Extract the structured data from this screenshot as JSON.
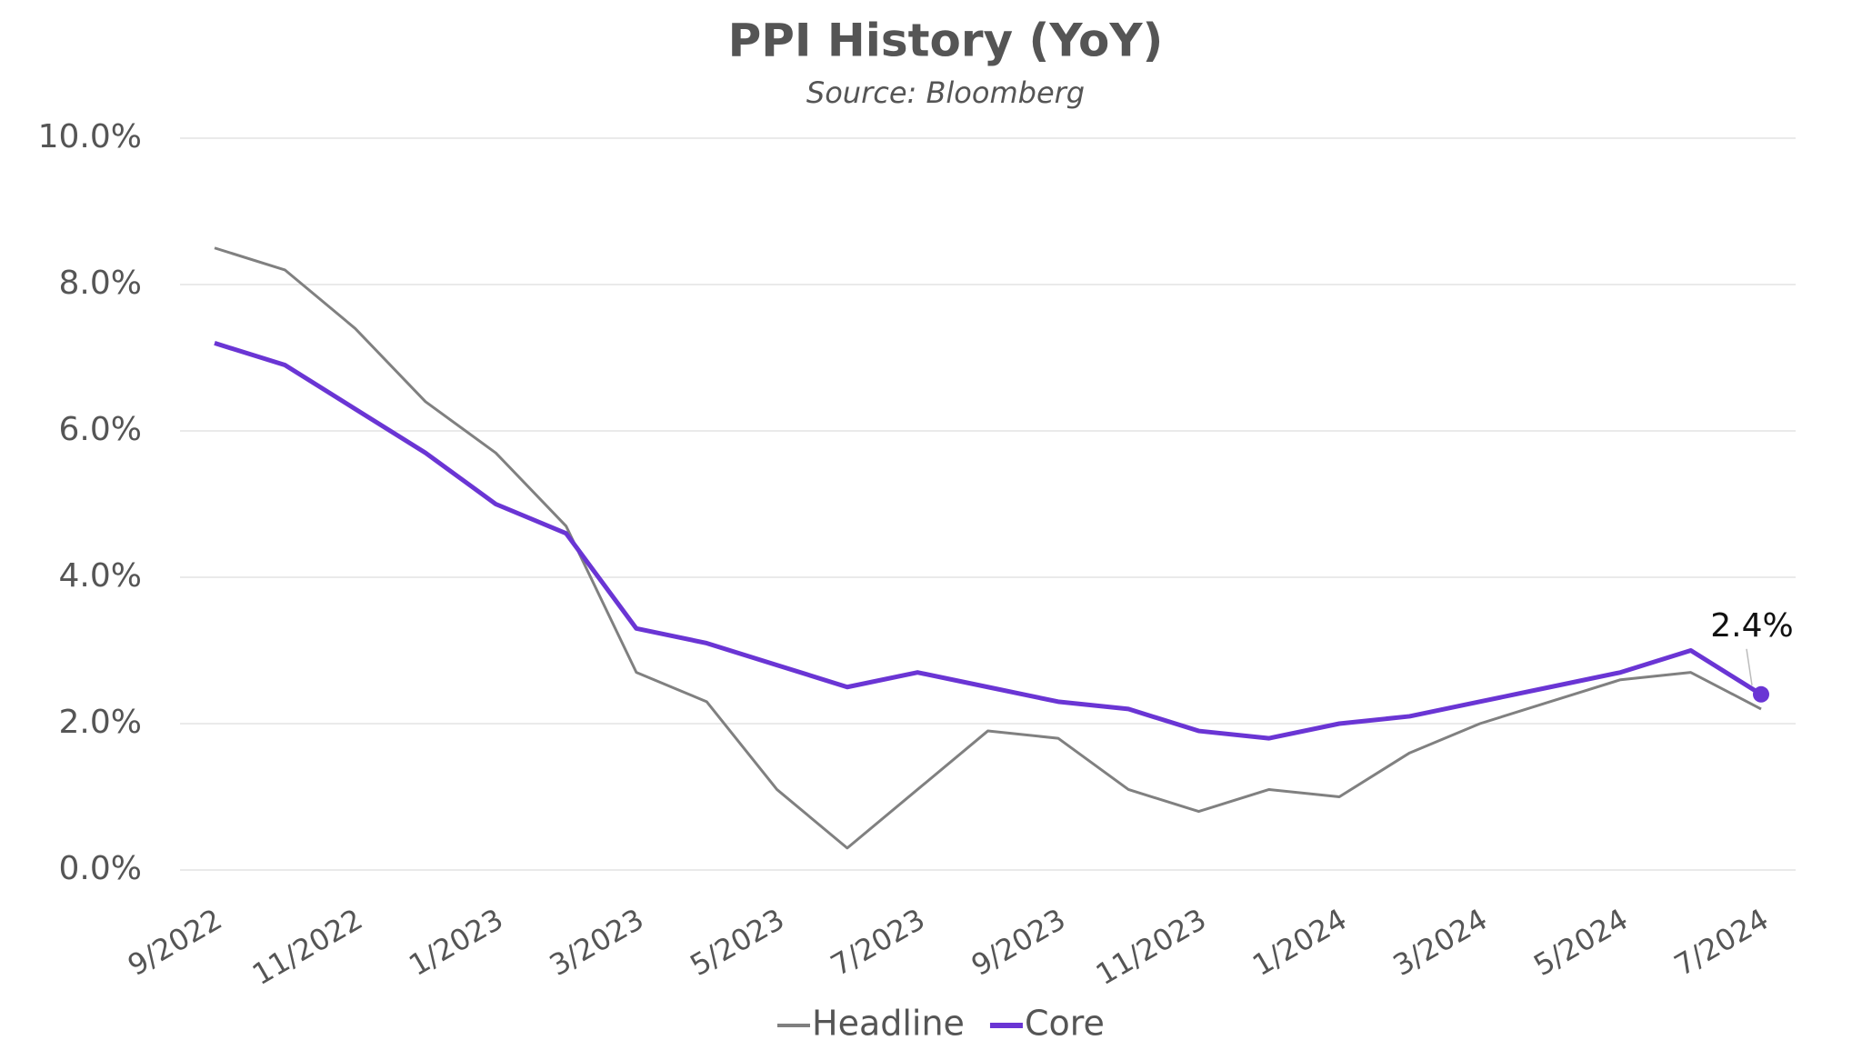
{
  "chart_data": {
    "type": "line",
    "title": "PPI History (YoY)",
    "subtitle": "Source: Bloomberg",
    "categories": [
      "9/2022",
      null,
      "11/2022",
      null,
      "1/2023",
      null,
      "3/2023",
      null,
      "5/2023",
      null,
      "7/2023",
      null,
      "9/2023",
      null,
      "11/2023",
      null,
      "1/2024",
      null,
      "3/2024",
      null,
      "5/2024",
      null,
      "7/2024"
    ],
    "series": [
      {
        "name": "Headline",
        "color": "#808080",
        "values": [
          8.5,
          8.2,
          7.4,
          6.4,
          5.7,
          4.7,
          2.7,
          2.3,
          1.1,
          0.3,
          1.1,
          1.9,
          1.8,
          1.1,
          0.8,
          1.1,
          1.0,
          1.6,
          2.0,
          2.3,
          2.6,
          2.7,
          2.2
        ]
      },
      {
        "name": "Core",
        "color": "#6a35d4",
        "values": [
          7.2,
          6.9,
          6.3,
          5.7,
          5.0,
          4.6,
          3.3,
          3.1,
          2.8,
          2.5,
          2.7,
          2.5,
          2.3,
          2.2,
          1.9,
          1.8,
          2.0,
          2.1,
          2.3,
          2.5,
          2.7,
          3.0,
          2.4
        ],
        "value_labels": [
          null,
          null,
          null,
          null,
          null,
          null,
          null,
          null,
          null,
          null,
          null,
          null,
          null,
          null,
          null,
          null,
          null,
          null,
          null,
          null,
          null,
          null,
          "2.4%"
        ]
      }
    ],
    "ylim": [
      0,
      10
    ],
    "yticks": [
      {
        "value": 0,
        "label": "0.0%"
      },
      {
        "value": 2,
        "label": "2.0%"
      },
      {
        "value": 4,
        "label": "4.0%"
      },
      {
        "value": 6,
        "label": "6.0%"
      },
      {
        "value": 8,
        "label": "8.0%"
      },
      {
        "value": 10,
        "label": "10.0%"
      }
    ],
    "grid": true,
    "legend": "bottom"
  }
}
